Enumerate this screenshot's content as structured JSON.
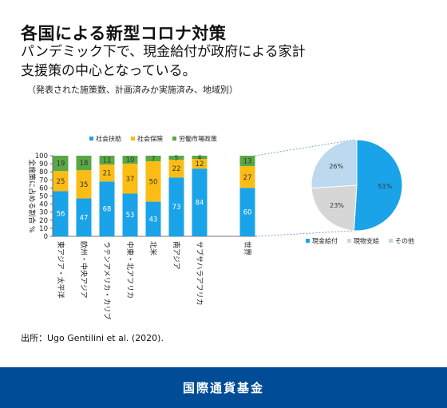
{
  "header": {
    "title": "各国による新型コロナ対策",
    "subtitle": "パンデミック下で、現金給付が政府による家計支援策の中心となっている。",
    "note": "（発表された施策数、計画済みか実施済み、地域別）"
  },
  "footer": {
    "source": "出所：Ugo Gentilini et al. (2020).",
    "brand": "国際通貨基金"
  },
  "chart_data": [
    {
      "type": "bar",
      "stacked": true,
      "ylabel": "全施策に占める割合 %",
      "ylim": [
        0,
        100
      ],
      "yticks": [
        0,
        10,
        20,
        30,
        40,
        50,
        60,
        70,
        80,
        90,
        100
      ],
      "categories": [
        "東アジア・太平洋",
        "欧州・中央アジア",
        "ラテンアメリカ・カリブ",
        "中東・北アフリカ",
        "北米",
        "南アジア",
        "サブサハラアフリカ",
        "世界"
      ],
      "series": [
        {
          "name": "社会扶助",
          "color": "#1aa3e8",
          "values": [
            56,
            47,
            68,
            53,
            43,
            73,
            84,
            60
          ]
        },
        {
          "name": "社会保険",
          "color": "#fbbd14",
          "values": [
            25,
            35,
            21,
            37,
            50,
            22,
            12,
            27
          ]
        },
        {
          "name": "労働市場政策",
          "color": "#5aa845",
          "values": [
            19,
            18,
            11,
            10,
            7,
            5,
            4,
            13
          ]
        }
      ],
      "legend": "top"
    },
    {
      "type": "pie",
      "slices": [
        {
          "label": "現金給付",
          "value": 51,
          "display": "51%",
          "color": "#1aa3e8"
        },
        {
          "label": "現物支給",
          "value": 23,
          "display": "23%",
          "color": "#d6d6d6"
        },
        {
          "label": "その他",
          "value": 26,
          "display": "26%",
          "color": "#bcd9ef"
        }
      ],
      "legend": "bottom"
    }
  ]
}
